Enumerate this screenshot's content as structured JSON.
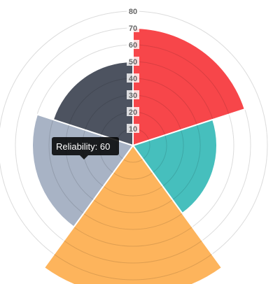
{
  "chart_data": {
    "type": "polarArea",
    "categories": [
      "",
      "",
      "",
      "",
      ""
    ],
    "series": [
      {
        "values": [
          70,
          50,
          90,
          60,
          50
        ],
        "colors": [
          "#f7464a",
          "#46bfbd",
          "#fdb45c",
          "#a8b3c5",
          "#4d5360"
        ]
      }
    ],
    "rlim": [
      0,
      80
    ],
    "r_ticks": [
      "10",
      "20",
      "30",
      "40",
      "50",
      "60",
      "70",
      "80"
    ],
    "grid": true,
    "legend": "none",
    "tooltip": {
      "label": "Reliability",
      "value": "60",
      "text": "Reliability: 60"
    }
  }
}
